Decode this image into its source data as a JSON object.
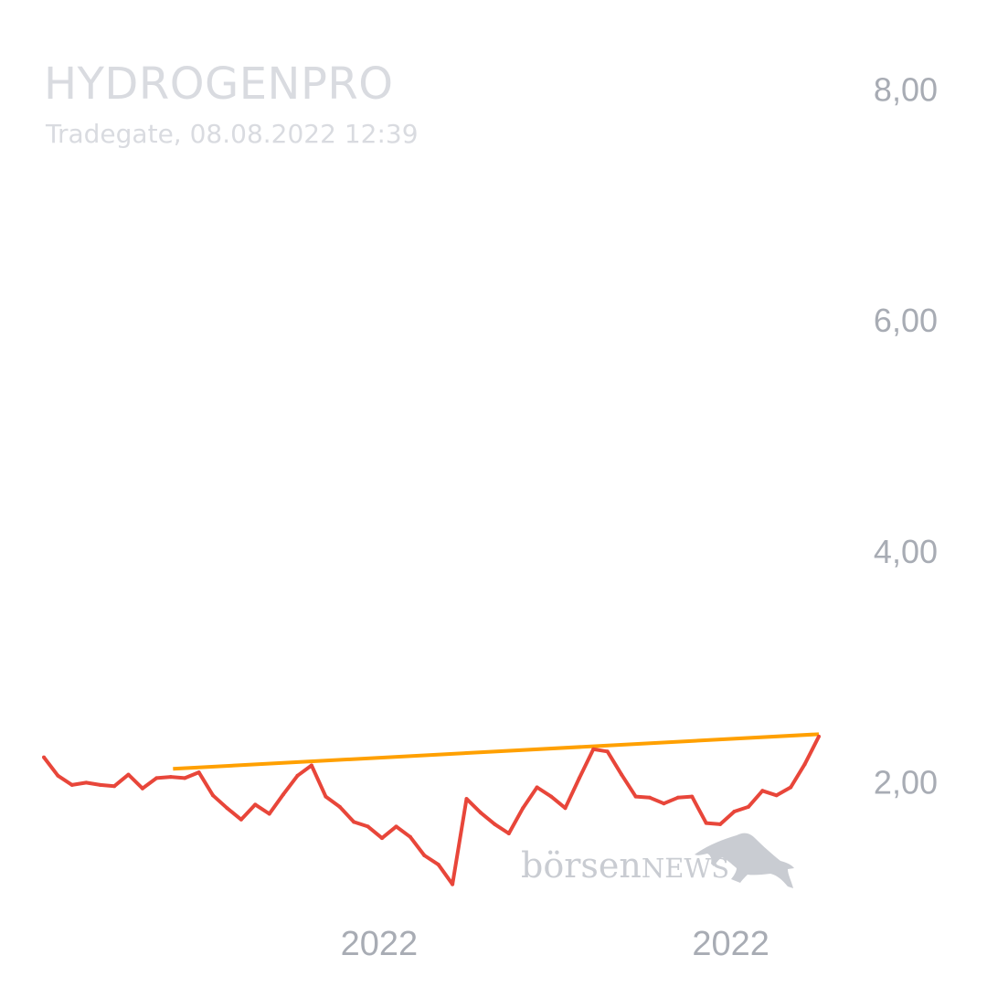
{
  "header": {
    "title": "HYDROGENPRO",
    "subtitle": "Tradegate, 08.08.2022 12:39"
  },
  "watermark": {
    "text_part1": "börsen",
    "text_part2": "NEWS",
    "icon": "bull-icon"
  },
  "colors": {
    "price_line": "#e8463a",
    "trend_line": "#ffa000",
    "axis_text": "#a8acb4",
    "title_text": "#d9dbe0"
  },
  "chart_data": {
    "type": "line",
    "title": "HYDROGENPRO",
    "y_ticks": [
      {
        "value": 8,
        "label": "8,00"
      },
      {
        "value": 6,
        "label": "6,00"
      },
      {
        "value": 4,
        "label": "4,00"
      },
      {
        "value": 2,
        "label": "2,00"
      }
    ],
    "x_ticks": [
      {
        "x": 31,
        "label": "2022"
      },
      {
        "x": 63.5,
        "label": "2022"
      }
    ],
    "ylim": [
      0.8,
      8.4
    ],
    "xlim": [
      0,
      72
    ],
    "grid": false,
    "series": [
      {
        "role": "price",
        "values": [
          2.22,
          2.06,
          1.98,
          2.0,
          1.98,
          1.97,
          2.07,
          1.95,
          2.04,
          2.05,
          2.04,
          2.09,
          1.89,
          1.78,
          1.68,
          1.81,
          1.73,
          1.9,
          2.06,
          2.15,
          1.88,
          1.79,
          1.66,
          1.62,
          1.52,
          1.62,
          1.53,
          1.37,
          1.29,
          1.12,
          1.86,
          1.74,
          1.64,
          1.56,
          1.78,
          1.96,
          1.88,
          1.78,
          2.04,
          2.29,
          2.27,
          2.07,
          1.88,
          1.87,
          1.82,
          1.87,
          1.88,
          1.65,
          1.64,
          1.75,
          1.79,
          1.93,
          1.89,
          1.96,
          2.16,
          2.4
        ]
      },
      {
        "role": "trend",
        "points": [
          [
            12,
            2.12
          ],
          [
            72.5,
            2.42
          ]
        ]
      }
    ]
  }
}
